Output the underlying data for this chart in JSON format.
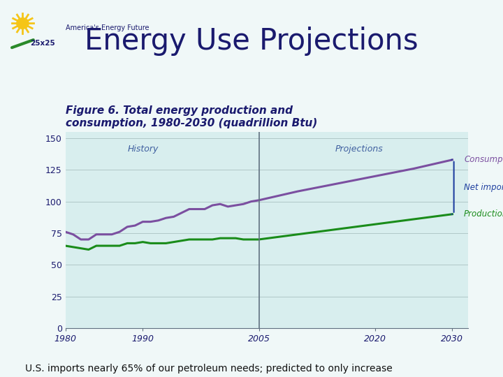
{
  "title": "Energy Use Projections",
  "figure_title": "Figure 6. Total energy production and\nconsumption, 1980-2030 (quadrillion Btu)",
  "subtitle_bottom": "U.S. imports nearly 65% of our petroleum needs; predicted to only increase",
  "bg_color": "#f0f8f8",
  "chart_bg_color": "#d8eeee",
  "xlim": [
    1980,
    2032
  ],
  "ylim": [
    0,
    155
  ],
  "yticks": [
    0,
    25,
    50,
    75,
    100,
    125,
    150
  ],
  "xticks": [
    1980,
    1990,
    2005,
    2020,
    2030
  ],
  "divider_year": 2005,
  "history_label": "History",
  "projections_label": "Projections",
  "consumption_label": "Consumption",
  "net_imports_label": "Net imports",
  "production_label": "Production",
  "consumption_color": "#7b4fa0",
  "production_color": "#1a8c1a",
  "net_imports_bracket_color": "#2040a0",
  "label_color": "#2040a0",
  "consumption_years": [
    1980,
    1981,
    1982,
    1983,
    1984,
    1985,
    1986,
    1987,
    1988,
    1989,
    1990,
    1991,
    1992,
    1993,
    1994,
    1995,
    1996,
    1997,
    1998,
    1999,
    2000,
    2001,
    2002,
    2003,
    2004,
    2005,
    2010,
    2015,
    2020,
    2025,
    2030
  ],
  "consumption_values": [
    76,
    74,
    70,
    70,
    74,
    74,
    74,
    76,
    80,
    81,
    84,
    84,
    85,
    87,
    88,
    91,
    94,
    94,
    94,
    97,
    98,
    96,
    97,
    98,
    100,
    101,
    108,
    114,
    120,
    126,
    133
  ],
  "production_years": [
    1980,
    1981,
    1982,
    1983,
    1984,
    1985,
    1986,
    1987,
    1988,
    1989,
    1990,
    1991,
    1992,
    1993,
    1994,
    1995,
    1996,
    1997,
    1998,
    1999,
    2000,
    2001,
    2002,
    2003,
    2004,
    2005,
    2010,
    2015,
    2020,
    2025,
    2030
  ],
  "production_values": [
    65,
    64,
    63,
    62,
    65,
    65,
    65,
    65,
    67,
    67,
    68,
    67,
    67,
    67,
    68,
    69,
    70,
    70,
    70,
    70,
    71,
    71,
    71,
    70,
    70,
    70,
    74,
    78,
    82,
    86,
    90
  ],
  "title_color": "#1a1a6e",
  "figure_title_color": "#1a1a6e",
  "title_fontsize": 30,
  "figure_title_fontsize": 11
}
